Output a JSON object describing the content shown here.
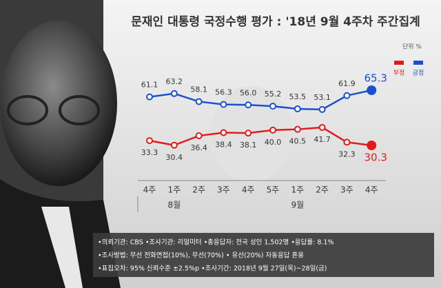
{
  "chart_data": {
    "type": "line",
    "title": "문재인 대통령 국정수행 평가 : '18년 9월 4주차 주간집계",
    "unit": "단위 %",
    "categories": [
      "4주",
      "1주",
      "2주",
      "3주",
      "4주",
      "5주",
      "1주",
      "2주",
      "3주",
      "4주"
    ],
    "months": [
      null,
      "8월",
      null,
      null,
      null,
      null,
      "9월",
      null,
      null,
      null
    ],
    "series": [
      {
        "name": "긍정",
        "color": "#1a4fd0",
        "values": [
          61.1,
          63.2,
          58.1,
          56.3,
          56.0,
          55.2,
          53.5,
          53.1,
          61.9,
          65.3
        ],
        "value_labels": [
          "61.1",
          "63.2",
          "58.1",
          "56.3",
          "56.0",
          "55.2",
          "53.5",
          "53.1",
          "61.9",
          "65.3"
        ]
      },
      {
        "name": "부정",
        "color": "#e01b1b",
        "values": [
          33.3,
          30.4,
          36.4,
          38.4,
          38.1,
          40.0,
          40.5,
          41.7,
          32.3,
          30.3
        ],
        "value_labels": [
          "33.3",
          "30.4",
          "36.4",
          "38.4",
          "38.1",
          "40.0",
          "40.5",
          "41.7",
          "32.3",
          "30.3"
        ]
      }
    ],
    "legend_order": [
      1,
      0
    ],
    "notes": [
      "•의뢰기관: CBS •조사기관: 리얼미터 •총응답자: 전국 성인 1,502명 •응답률: 8.1%",
      "•조사방법: 무선 전화면접(10%), 무선(70%) • 유선(20%) 자동응답 혼용",
      "•표집오차: 95% 신뢰수준 ±2.5%p •조사기간: 2018년 9월 27일(목)~28일(금)"
    ]
  }
}
